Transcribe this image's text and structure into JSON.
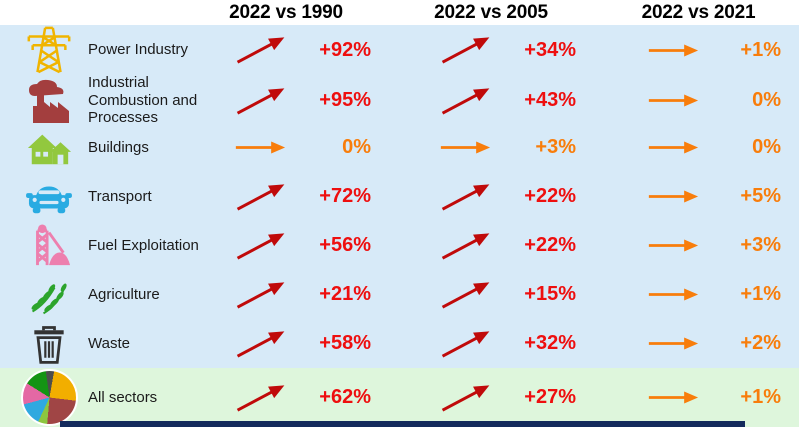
{
  "colors": {
    "background_blue": "#D7EAF8",
    "background_green": "#DEF6DC",
    "header_text": "#000000",
    "up_arrow": "#C00A0A",
    "up_value_text": "#EE0F0F",
    "flat_arrow_and_text": "#F87D0B",
    "footer_bar": "#132A5C"
  },
  "chart_data": {
    "type": "table",
    "columns": [
      "2022 vs 1990",
      "2022 vs 2005",
      "2022 vs 2021"
    ],
    "unit": "%",
    "rows": [
      {
        "sector": "Power Industry",
        "icon": "electricity-pylon-icon",
        "values": [
          92,
          34,
          1
        ],
        "display": [
          "+92%",
          "+34%",
          "+1%"
        ],
        "trends": [
          "up",
          "up",
          "flat"
        ],
        "highlight": false
      },
      {
        "sector": "Industrial Combustion and Processes",
        "icon": "factory-icon",
        "values": [
          95,
          43,
          0
        ],
        "display": [
          "+95%",
          "+43%",
          "0%"
        ],
        "trends": [
          "up",
          "up",
          "flat"
        ],
        "highlight": false
      },
      {
        "sector": "Buildings",
        "icon": "houses-icon",
        "values": [
          0,
          3,
          0
        ],
        "display": [
          "0%",
          "+3%",
          "0%"
        ],
        "trends": [
          "flat",
          "flat",
          "flat"
        ],
        "highlight": false
      },
      {
        "sector": "Transport",
        "icon": "car-icon",
        "values": [
          72,
          22,
          5
        ],
        "display": [
          "+72%",
          "+22%",
          "+5%"
        ],
        "trends": [
          "up",
          "up",
          "flat"
        ],
        "highlight": false
      },
      {
        "sector": "Fuel Exploitation",
        "icon": "mine-headframe-icon",
        "values": [
          56,
          22,
          3
        ],
        "display": [
          "+56%",
          "+22%",
          "+3%"
        ],
        "trends": [
          "up",
          "up",
          "flat"
        ],
        "highlight": false
      },
      {
        "sector": "Agriculture",
        "icon": "wheat-icon",
        "values": [
          21,
          15,
          1
        ],
        "display": [
          "+21%",
          "+15%",
          "+1%"
        ],
        "trends": [
          "up",
          "up",
          "flat"
        ],
        "highlight": false
      },
      {
        "sector": "Waste",
        "icon": "trash-can-icon",
        "values": [
          58,
          32,
          2
        ],
        "display": [
          "+58%",
          "+32%",
          "+2%"
        ],
        "trends": [
          "up",
          "up",
          "flat"
        ],
        "highlight": false
      },
      {
        "sector": "All sectors",
        "icon": "pie-chart-icon",
        "values": [
          62,
          27,
          1
        ],
        "display": [
          "+62%",
          "+27%",
          "+1%"
        ],
        "trends": [
          "up",
          "up",
          "flat"
        ],
        "highlight": true
      }
    ]
  }
}
